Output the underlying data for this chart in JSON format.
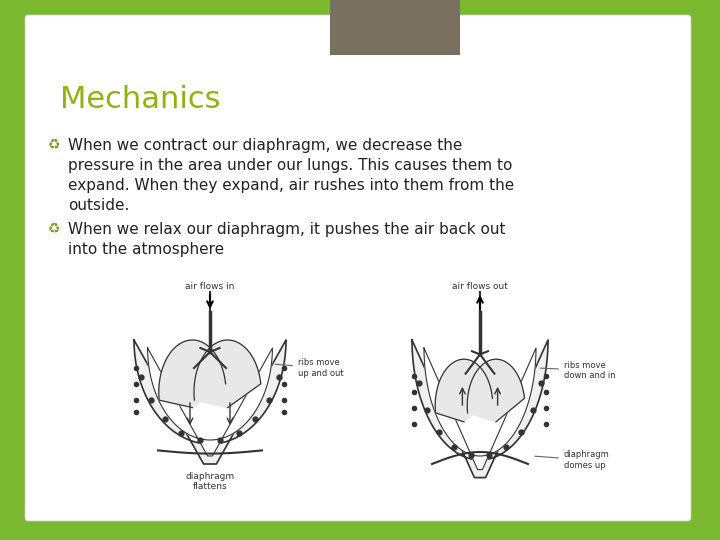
{
  "title": "Mechanics",
  "title_color": "#8db510",
  "title_fontsize": 22,
  "bullet1_line1": "When we contract our diaphragm, we decrease the",
  "bullet1_line2": "pressure in the area under our lungs. This causes them to",
  "bullet1_line3": "expand. When they expand, air rushes into them from the",
  "bullet1_line4": "outside.",
  "bullet2_line1": "When we relax our diaphragm, it pushes the air back out",
  "bullet2_line2": "into the atmosphere",
  "text_color": "#222222",
  "text_fontsize": 11,
  "background_outer": "#7ab830",
  "background_slide": "#ffffff",
  "header_rect_color": "#7a7060",
  "bullet_color": "#7a9a20"
}
